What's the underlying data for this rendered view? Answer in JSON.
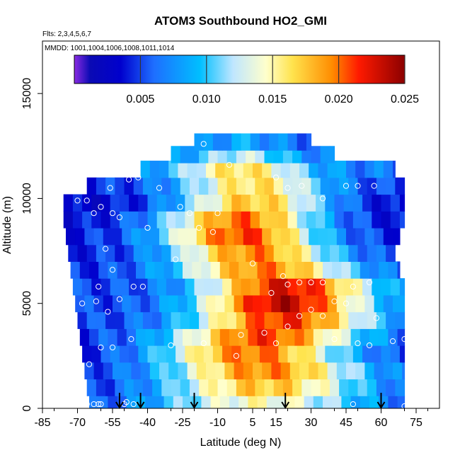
{
  "chart_data": {
    "type": "heatmap",
    "title": "ATOM3 Southbound HO2_GMI",
    "subtitle_flights": "Flts: 2,3,4,5,6,7",
    "subtitle_mmdd": "MMDD: 1001,1004,1006,1008,1011,1014",
    "xlabel": "Latitude (deg N)",
    "ylabel": "Altitude (m)",
    "xlim": [
      -85,
      85
    ],
    "ylim": [
      0,
      17500
    ],
    "x_ticks": [
      -85,
      -70,
      -55,
      -40,
      -25,
      -10,
      5,
      15,
      30,
      45,
      60,
      75
    ],
    "y_ticks": [
      0,
      5000,
      10000,
      15000
    ],
    "colorbar": {
      "range": [
        0,
        0.025
      ],
      "ticks": [
        "0.005",
        "0.010",
        "0.015",
        "0.020",
        "0.025"
      ],
      "stops": [
        {
          "v": 0.0,
          "c": "#8a2be2"
        },
        {
          "v": 0.0012,
          "c": "#0a0ab4"
        },
        {
          "v": 0.0035,
          "c": "#0000cd"
        },
        {
          "v": 0.006,
          "c": "#1e6eff"
        },
        {
          "v": 0.0095,
          "c": "#00bfff"
        },
        {
          "v": 0.012,
          "c": "#bfe6ff"
        },
        {
          "v": 0.0145,
          "c": "#ffffcc"
        },
        {
          "v": 0.0165,
          "c": "#ffe34d"
        },
        {
          "v": 0.0195,
          "c": "#ff8c00"
        },
        {
          "v": 0.0215,
          "c": "#ff1a00"
        },
        {
          "v": 0.025,
          "c": "#8b0000"
        }
      ]
    },
    "field": {
      "alt_step": 800,
      "lat_step": 4,
      "profiles": [
        {
          "alt": 200,
          "lat_min": -65,
          "lat_max": 70,
          "core_lat": 8,
          "core_val": 0.0145,
          "edge_val": 0.004,
          "width": 50
        },
        {
          "alt": 1000,
          "lat_min": -66,
          "lat_max": 70,
          "core_lat": 10,
          "core_val": 0.0175,
          "edge_val": 0.004,
          "width": 45
        },
        {
          "alt": 1800,
          "lat_min": -67,
          "lat_max": 70,
          "core_lat": 10,
          "core_val": 0.0195,
          "edge_val": 0.0045,
          "width": 42
        },
        {
          "alt": 2600,
          "lat_min": -68,
          "lat_max": 70,
          "core_lat": 5,
          "core_val": 0.02,
          "edge_val": 0.004,
          "width": 40
        },
        {
          "alt": 3400,
          "lat_min": -69,
          "lat_max": 70,
          "core_lat": 10,
          "core_val": 0.021,
          "edge_val": 0.0045,
          "width": 40
        },
        {
          "alt": 4200,
          "lat_min": -70,
          "lat_max": 70,
          "core_lat": 18,
          "core_val": 0.0215,
          "edge_val": 0.005,
          "width": 38
        },
        {
          "alt": 5000,
          "lat_min": -71,
          "lat_max": 70,
          "core_lat": 18,
          "core_val": 0.0235,
          "edge_val": 0.005,
          "width": 36
        },
        {
          "alt": 5800,
          "lat_min": -72,
          "lat_max": 70,
          "core_lat": 20,
          "core_val": 0.0225,
          "edge_val": 0.005,
          "width": 36
        },
        {
          "alt": 6600,
          "lat_min": -73,
          "lat_max": 68,
          "core_lat": 10,
          "core_val": 0.0195,
          "edge_val": 0.0045,
          "width": 38
        },
        {
          "alt": 7400,
          "lat_min": -74,
          "lat_max": 66,
          "core_lat": 5,
          "core_val": 0.0195,
          "edge_val": 0.004,
          "width": 36
        },
        {
          "alt": 8200,
          "lat_min": -75,
          "lat_max": 68,
          "core_lat": 0,
          "core_val": 0.021,
          "edge_val": 0.004,
          "width": 34
        },
        {
          "alt": 9000,
          "lat_min": -76,
          "lat_max": 70,
          "core_lat": 0,
          "core_val": 0.02,
          "edge_val": 0.0035,
          "width": 34
        },
        {
          "alt": 9800,
          "lat_min": -76,
          "lat_max": 70,
          "core_lat": 5,
          "core_val": 0.0175,
          "edge_val": 0.003,
          "width": 34
        },
        {
          "alt": 10600,
          "lat_min": -66,
          "lat_max": 70,
          "core_lat": 5,
          "core_val": 0.0165,
          "edge_val": 0.0045,
          "width": 32
        },
        {
          "alt": 11400,
          "lat_min": -43,
          "lat_max": 66,
          "core_lat": 0,
          "core_val": 0.0165,
          "edge_val": 0.0065,
          "width": 28
        },
        {
          "alt": 12100,
          "lat_min": -30,
          "lat_max": 40,
          "core_lat": 0,
          "core_val": 0.0125,
          "edge_val": 0.0065,
          "width": 22
        },
        {
          "alt": 12700,
          "lat_min": -20,
          "lat_max": 30,
          "core_lat": 0,
          "core_val": 0.0085,
          "edge_val": 0.006,
          "width": 18
        }
      ]
    },
    "points": [
      [
        -66,
        200
      ],
      [
        -63,
        200
      ],
      [
        -61,
        200
      ],
      [
        -60,
        200
      ],
      [
        -50,
        200
      ],
      [
        -49,
        300
      ],
      [
        -46,
        200
      ],
      [
        -65,
        2100
      ],
      [
        -60,
        2900
      ],
      [
        -55,
        2900
      ],
      [
        -47,
        3300
      ],
      [
        -30,
        3000
      ],
      [
        -68,
        5000
      ],
      [
        -61,
        5800
      ],
      [
        -62,
        5100
      ],
      [
        -57,
        4600
      ],
      [
        -52,
        5200
      ],
      [
        -46,
        5800
      ],
      [
        -42,
        5800
      ],
      [
        -55,
        6600
      ],
      [
        -58,
        7600
      ],
      [
        -40,
        8600
      ],
      [
        -28,
        7100
      ],
      [
        -63,
        9300
      ],
      [
        -60,
        9600
      ],
      [
        -55,
        9300
      ],
      [
        -52,
        9100
      ],
      [
        -70,
        9900
      ],
      [
        -66,
        9900
      ],
      [
        -56,
        10500
      ],
      [
        -48,
        10900
      ],
      [
        -44,
        11000
      ],
      [
        -35,
        10500
      ],
      [
        -26,
        9600
      ],
      [
        -22,
        9300
      ],
      [
        -18,
        8600
      ],
      [
        -12,
        8400
      ],
      [
        -10,
        9300
      ],
      [
        -16,
        12600
      ],
      [
        -5,
        11600
      ],
      [
        15,
        11000
      ],
      [
        20,
        10500
      ],
      [
        26,
        10600
      ],
      [
        35,
        10000
      ],
      [
        45,
        10600
      ],
      [
        50,
        10600
      ],
      [
        57,
        10600
      ],
      [
        68,
        11800
      ],
      [
        -16,
        3100
      ],
      [
        0,
        3500
      ],
      [
        -2,
        2500
      ],
      [
        10,
        3600
      ],
      [
        15,
        3100
      ],
      [
        20,
        3900
      ],
      [
        25,
        4400
      ],
      [
        13,
        5500
      ],
      [
        18,
        6300
      ],
      [
        25,
        6000
      ],
      [
        30,
        6000
      ],
      [
        35,
        6000
      ],
      [
        40,
        5100
      ],
      [
        45,
        5000
      ],
      [
        48,
        5800
      ],
      [
        55,
        6000
      ],
      [
        58,
        4300
      ],
      [
        50,
        3100
      ],
      [
        55,
        3000
      ],
      [
        65,
        3200
      ],
      [
        70,
        3300
      ],
      [
        30,
        4700
      ],
      [
        20,
        5900
      ],
      [
        5,
        6900
      ],
      [
        35,
        4400
      ],
      [
        40,
        3300
      ],
      [
        48,
        200
      ],
      [
        70,
        100
      ]
    ],
    "arrows": [
      -52,
      -43,
      -20,
      19,
      60
    ]
  }
}
